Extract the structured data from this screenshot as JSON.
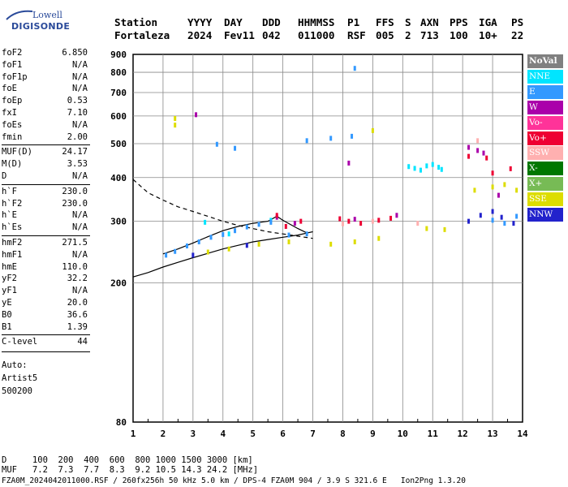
{
  "logo": {
    "top": "Lowell",
    "bottom": "DIGISONDE"
  },
  "header": {
    "labels": [
      "Station",
      "YYYY",
      "DAY",
      "DDD",
      "HHMMSS",
      "P1",
      "FFS",
      "S",
      "AXN",
      "PPS",
      "IGA",
      "PS"
    ],
    "values": [
      "Fortaleza",
      "2024",
      "Fev11",
      "042",
      "011000",
      "RSF",
      "005",
      "2",
      "713",
      "100",
      "10+",
      "22"
    ]
  },
  "params": {
    "group1": [
      {
        "name": "foF2",
        "value": "6.850"
      },
      {
        "name": "foF1",
        "value": "N/A"
      },
      {
        "name": "foF1p",
        "value": "N/A"
      },
      {
        "name": "foE",
        "value": "N/A"
      },
      {
        "name": "foEp",
        "value": "0.53"
      },
      {
        "name": "fxI",
        "value": "7.10"
      },
      {
        "name": "foEs",
        "value": "N/A"
      },
      {
        "name": "fmin",
        "value": "2.00"
      }
    ],
    "group2": [
      {
        "name": "MUF(D)",
        "value": "24.17"
      },
      {
        "name": "M(D)",
        "value": "3.53"
      },
      {
        "name": "D",
        "value": "N/A"
      }
    ],
    "group3": [
      {
        "name": "h`F",
        "value": "230.0"
      },
      {
        "name": "h`F2",
        "value": "230.0"
      },
      {
        "name": "h`E",
        "value": "N/A"
      },
      {
        "name": "h`Es",
        "value": "N/A"
      }
    ],
    "group4": [
      {
        "name": "hmF2",
        "value": "271.5"
      },
      {
        "name": "hmF1",
        "value": "N/A"
      },
      {
        "name": "hmE",
        "value": "110.0"
      },
      {
        "name": "yF2",
        "value": "32.2"
      },
      {
        "name": "yF1",
        "value": "N/A"
      },
      {
        "name": "yE",
        "value": "20.0"
      },
      {
        "name": "B0",
        "value": "36.6"
      },
      {
        "name": "B1",
        "value": "1.39"
      }
    ],
    "group5": [
      {
        "name": "C-level",
        "value": "44"
      }
    ],
    "auto": [
      "Auto:",
      "Artist5",
      "500200"
    ]
  },
  "legend": [
    {
      "label": "NoVal",
      "color": "#808080"
    },
    {
      "label": "NNE",
      "color": "#00e5ff"
    },
    {
      "label": "E",
      "color": "#3399ff"
    },
    {
      "label": "W",
      "color": "#aa00aa"
    },
    {
      "label": "Vo-",
      "color": "#ff3399"
    },
    {
      "label": "Vo+",
      "color": "#ee0033"
    },
    {
      "label": "SSW",
      "color": "#ffb0b0"
    },
    {
      "label": "X-",
      "color": "#007700"
    },
    {
      "label": "X+",
      "color": "#77bb55"
    },
    {
      "label": "SSE",
      "color": "#dddd00"
    },
    {
      "label": "NNW",
      "color": "#2222cc"
    }
  ],
  "footer": {
    "d_row": "D     100  200  400  600  800 1000 1500 3000 [km]",
    "muf_row": "MUF   7.2  7.3  7.7  8.3  9.2 10.5 14.3 24.2 [MHz]",
    "info_row": "FZA0M_2024042011000.RSF / 260fx256h 50 kHz 5.0 km / DPS-4 FZA0M 904 / 3.9 S 321.6 E   Ion2Png 1.3.20"
  },
  "chart_data": {
    "type": "scatter",
    "title": "",
    "xlabel": "",
    "ylabel": "",
    "xlim": [
      1,
      14
    ],
    "ylim": [
      80,
      900
    ],
    "y_scale": "log",
    "x_ticks": [
      1,
      2,
      3,
      4,
      5,
      6,
      7,
      8,
      9,
      10,
      11,
      12,
      13,
      14
    ],
    "y_ticks": [
      80,
      200,
      300,
      400,
      500,
      600,
      700,
      800,
      900
    ],
    "grid": true,
    "legend_placement": "right",
    "series": [
      {
        "name": "NNE",
        "color": "#00e5ff",
        "points": [
          [
            10.2,
            430
          ],
          [
            10.4,
            425
          ],
          [
            10.6,
            420
          ],
          [
            10.8,
            432
          ],
          [
            11.0,
            436
          ],
          [
            11.2,
            428
          ],
          [
            11.3,
            422
          ],
          [
            3.4,
            298
          ],
          [
            4.2,
            276
          ],
          [
            5.6,
            302
          ]
        ]
      },
      {
        "name": "E",
        "color": "#3399ff",
        "points": [
          [
            2.1,
            240
          ],
          [
            2.4,
            246
          ],
          [
            2.8,
            255
          ],
          [
            3.2,
            262
          ],
          [
            3.6,
            270
          ],
          [
            4.0,
            275
          ],
          [
            4.4,
            282
          ],
          [
            4.8,
            289
          ],
          [
            5.2,
            294
          ],
          [
            5.6,
            298
          ],
          [
            6.2,
            274
          ],
          [
            6.8,
            276
          ],
          [
            8.4,
            821
          ],
          [
            3.8,
            498
          ],
          [
            4.4,
            485
          ],
          [
            6.8,
            510
          ],
          [
            7.6,
            518
          ],
          [
            8.3,
            525
          ],
          [
            13.0,
            302
          ],
          [
            13.4,
            296
          ],
          [
            13.8,
            310
          ]
        ]
      },
      {
        "name": "W",
        "color": "#aa00aa",
        "points": [
          [
            3.1,
            605
          ],
          [
            12.2,
            488
          ],
          [
            12.5,
            478
          ],
          [
            12.7,
            470
          ],
          [
            8.2,
            440
          ],
          [
            5.8,
            308
          ],
          [
            6.4,
            296
          ],
          [
            8.4,
            304
          ],
          [
            9.8,
            312
          ],
          [
            13.2,
            356
          ]
        ]
      },
      {
        "name": "Vo+",
        "color": "#ee0033",
        "points": [
          [
            5.8,
            312
          ],
          [
            6.1,
            290
          ],
          [
            6.6,
            300
          ],
          [
            7.9,
            305
          ],
          [
            8.2,
            300
          ],
          [
            8.6,
            296
          ],
          [
            9.2,
            302
          ],
          [
            9.6,
            306
          ],
          [
            12.2,
            460
          ],
          [
            12.8,
            455
          ],
          [
            13.0,
            412
          ],
          [
            13.6,
            424
          ]
        ]
      },
      {
        "name": "SSW",
        "color": "#ffb0b0",
        "points": [
          [
            8.0,
            295
          ],
          [
            9.0,
            300
          ],
          [
            10.5,
            296
          ],
          [
            12.5,
            510
          ]
        ]
      },
      {
        "name": "SSE",
        "color": "#dddd00",
        "points": [
          [
            2.4,
            590
          ],
          [
            2.4,
            565
          ],
          [
            3.5,
            245
          ],
          [
            4.2,
            250
          ],
          [
            5.2,
            258
          ],
          [
            6.2,
            262
          ],
          [
            7.6,
            258
          ],
          [
            8.4,
            262
          ],
          [
            9.2,
            268
          ],
          [
            10.8,
            286
          ],
          [
            11.4,
            284
          ],
          [
            12.4,
            368
          ],
          [
            13.0,
            376
          ],
          [
            13.4,
            382
          ],
          [
            13.8,
            368
          ],
          [
            9.0,
            545
          ]
        ]
      },
      {
        "name": "NNW",
        "color": "#2222cc",
        "points": [
          [
            12.2,
            300
          ],
          [
            12.6,
            312
          ],
          [
            13.0,
            320
          ],
          [
            13.3,
            308
          ],
          [
            13.7,
            296
          ],
          [
            3.0,
            240
          ],
          [
            4.8,
            256
          ]
        ]
      }
    ],
    "curves": [
      {
        "style": "dashed",
        "points": [
          [
            1.0,
            395
          ],
          [
            1.5,
            362
          ],
          [
            2.0,
            345
          ],
          [
            2.5,
            330
          ],
          [
            3.0,
            320
          ],
          [
            3.5,
            310
          ],
          [
            4.0,
            300
          ],
          [
            4.5,
            292
          ],
          [
            5.0,
            286
          ],
          [
            5.5,
            280
          ],
          [
            6.0,
            276
          ],
          [
            6.5,
            272
          ],
          [
            7.0,
            268
          ]
        ]
      },
      {
        "style": "solid",
        "points": [
          [
            1.0,
            208
          ],
          [
            1.5,
            214
          ],
          [
            2.0,
            222
          ],
          [
            2.5,
            229
          ],
          [
            3.0,
            236
          ],
          [
            3.5,
            243
          ],
          [
            4.0,
            250
          ],
          [
            4.5,
            256
          ],
          [
            5.0,
            262
          ],
          [
            5.5,
            266
          ],
          [
            6.0,
            270
          ],
          [
            6.5,
            274
          ],
          [
            7.0,
            280
          ]
        ]
      },
      {
        "style": "solid",
        "points": [
          [
            2.0,
            242
          ],
          [
            2.5,
            250
          ],
          [
            3.0,
            260
          ],
          [
            3.5,
            271
          ],
          [
            4.0,
            282
          ],
          [
            4.5,
            290
          ],
          [
            5.0,
            296
          ],
          [
            5.5,
            300
          ],
          [
            5.8,
            310
          ],
          [
            6.0,
            302
          ],
          [
            6.5,
            286
          ],
          [
            6.8,
            278
          ]
        ]
      }
    ]
  }
}
